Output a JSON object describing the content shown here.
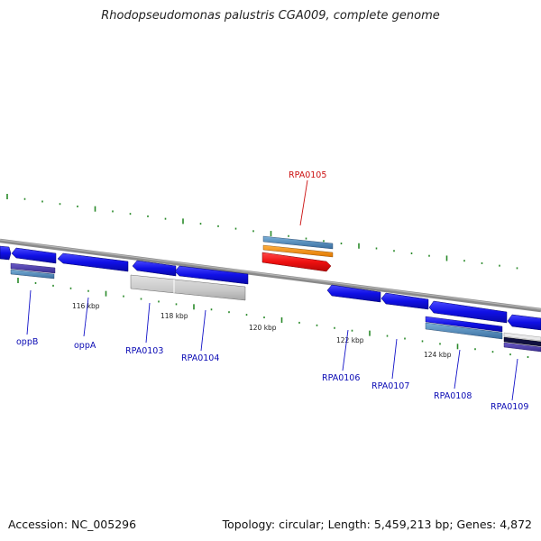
{
  "title": "Rhodopseudomonas palustris CGA009, complete genome",
  "accession": "Accession: NC_005296",
  "summary": "Topology: circular; Length: 5,459,213 bp; Genes: 4,872",
  "colors": {
    "gene_blue": "#1010e0",
    "gene_label_blue": "#0a0ab4",
    "highlight_red": "#e01010",
    "highlight_label_red": "#cc1111",
    "pseudogene_gray": "#c8c8c8",
    "tick_green": "#2a8a2a",
    "backbone_gray": "#8a8a8a"
  },
  "ticks": [
    {
      "label": "116 kbp"
    },
    {
      "label": "118 kbp"
    },
    {
      "label": "120 kbp"
    },
    {
      "label": "122 kbp"
    },
    {
      "label": "124 kbp"
    }
  ],
  "genes": [
    {
      "label": "oppB"
    },
    {
      "label": "oppA"
    },
    {
      "label": "RPA0103"
    },
    {
      "label": "RPA0104"
    },
    {
      "label": "RPA0105"
    },
    {
      "label": "RPA0106"
    },
    {
      "label": "RPA0107"
    },
    {
      "label": "RPA0108"
    },
    {
      "label": "RPA0109"
    }
  ]
}
